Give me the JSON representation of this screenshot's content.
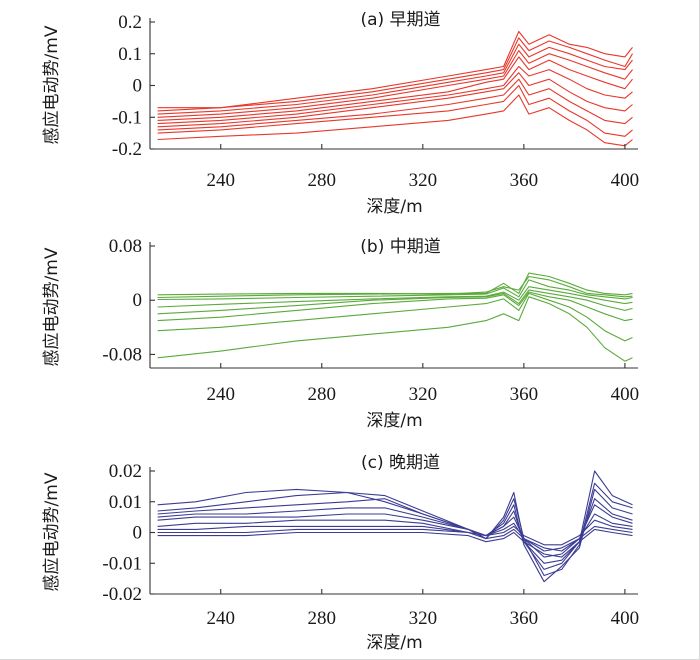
{
  "chart_data": [
    {
      "type": "line",
      "title": "(a) 早期道",
      "xlabel": "深度/m",
      "ylabel": "感应电动势/mV",
      "xlim": [
        212,
        404
      ],
      "ylim": [
        -0.2,
        0.2
      ],
      "xticks": [
        240,
        280,
        320,
        360,
        400
      ],
      "yticks": [
        0.2,
        0.1,
        0,
        -0.1,
        -0.2
      ],
      "ytick_labels": [
        "0.2",
        "0.1",
        "0",
        "-0.1",
        "-0.2"
      ],
      "color": "#e8372b",
      "series": [
        {
          "x": [
            215,
            240,
            270,
            300,
            330,
            345,
            352,
            358,
            362,
            370,
            378,
            385,
            392,
            400,
            403
          ],
          "values": [
            -0.07,
            -0.07,
            -0.04,
            -0.01,
            0.03,
            0.05,
            0.06,
            0.17,
            0.13,
            0.16,
            0.13,
            0.12,
            0.1,
            0.09,
            0.12
          ]
        },
        {
          "x": [
            215,
            240,
            270,
            300,
            330,
            345,
            352,
            358,
            362,
            370,
            378,
            385,
            392,
            400,
            403
          ],
          "values": [
            -0.08,
            -0.07,
            -0.05,
            -0.02,
            0.02,
            0.04,
            0.05,
            0.15,
            0.11,
            0.14,
            0.12,
            0.1,
            0.08,
            0.06,
            0.1
          ]
        },
        {
          "x": [
            215,
            240,
            270,
            300,
            330,
            345,
            352,
            358,
            362,
            370,
            378,
            385,
            392,
            400,
            403
          ],
          "values": [
            -0.09,
            -0.08,
            -0.06,
            -0.03,
            0.01,
            0.03,
            0.04,
            0.13,
            0.09,
            0.12,
            0.1,
            0.08,
            0.06,
            0.05,
            0.08
          ]
        },
        {
          "x": [
            215,
            240,
            270,
            300,
            330,
            345,
            352,
            358,
            362,
            370,
            378,
            385,
            392,
            400,
            403
          ],
          "values": [
            -0.1,
            -0.09,
            -0.07,
            -0.04,
            0.0,
            0.02,
            0.03,
            0.11,
            0.07,
            0.1,
            0.08,
            0.06,
            0.04,
            0.02,
            0.05
          ]
        },
        {
          "x": [
            215,
            240,
            270,
            300,
            330,
            345,
            352,
            358,
            362,
            370,
            378,
            385,
            392,
            400,
            403
          ],
          "values": [
            -0.11,
            -0.1,
            -0.08,
            -0.05,
            -0.02,
            0.01,
            0.02,
            0.09,
            0.05,
            0.08,
            0.05,
            0.03,
            0.01,
            -0.01,
            0.02
          ]
        },
        {
          "x": [
            215,
            240,
            270,
            300,
            330,
            345,
            352,
            358,
            362,
            370,
            378,
            385,
            392,
            400,
            403
          ],
          "values": [
            -0.12,
            -0.11,
            -0.09,
            -0.06,
            -0.03,
            -0.01,
            0.0,
            0.06,
            0.03,
            0.05,
            0.02,
            -0.01,
            -0.03,
            -0.04,
            -0.02
          ]
        },
        {
          "x": [
            215,
            240,
            270,
            300,
            330,
            345,
            352,
            358,
            362,
            370,
            378,
            385,
            392,
            400,
            403
          ],
          "values": [
            -0.13,
            -0.12,
            -0.1,
            -0.07,
            -0.04,
            -0.02,
            -0.01,
            0.04,
            0.0,
            0.02,
            -0.02,
            -0.05,
            -0.07,
            -0.08,
            -0.06
          ]
        },
        {
          "x": [
            215,
            240,
            270,
            300,
            330,
            345,
            352,
            358,
            362,
            370,
            378,
            385,
            392,
            400,
            403
          ],
          "values": [
            -0.14,
            -0.13,
            -0.11,
            -0.09,
            -0.06,
            -0.04,
            -0.03,
            0.02,
            -0.03,
            -0.01,
            -0.05,
            -0.08,
            -0.11,
            -0.12,
            -0.1
          ]
        },
        {
          "x": [
            215,
            240,
            270,
            300,
            330,
            345,
            352,
            358,
            362,
            370,
            378,
            385,
            392,
            400,
            403
          ],
          "values": [
            -0.15,
            -0.14,
            -0.12,
            -0.1,
            -0.08,
            -0.06,
            -0.05,
            0.0,
            -0.06,
            -0.04,
            -0.08,
            -0.11,
            -0.15,
            -0.16,
            -0.14
          ]
        },
        {
          "x": [
            215,
            240,
            270,
            300,
            330,
            345,
            352,
            358,
            362,
            370,
            378,
            385,
            392,
            400,
            403
          ],
          "values": [
            -0.17,
            -0.16,
            -0.15,
            -0.13,
            -0.11,
            -0.09,
            -0.08,
            -0.03,
            -0.09,
            -0.07,
            -0.11,
            -0.14,
            -0.18,
            -0.19,
            -0.17
          ]
        }
      ]
    },
    {
      "type": "line",
      "title": "(b) 中期道",
      "xlabel": "深度/m",
      "ylabel": "感应电动势/mV",
      "xlim": [
        212,
        404
      ],
      "ylim": [
        -0.1,
        0.08
      ],
      "xticks": [
        240,
        280,
        320,
        360,
        400
      ],
      "yticks": [
        0.08,
        0,
        -0.08
      ],
      "ytick_labels": [
        "0.08",
        "0",
        "-0.08"
      ],
      "color": "#5aaa3c",
      "series": [
        {
          "x": [
            215,
            240,
            270,
            300,
            330,
            345,
            352,
            358,
            362,
            370,
            378,
            385,
            392,
            400,
            403
          ],
          "values": [
            0.008,
            0.009,
            0.01,
            0.01,
            0.009,
            0.012,
            0.02,
            0.015,
            0.035,
            0.03,
            0.02,
            0.01,
            0.008,
            0.005,
            0.006
          ]
        },
        {
          "x": [
            215,
            240,
            270,
            300,
            330,
            345,
            352,
            358,
            362,
            370,
            378,
            385,
            392,
            400,
            403
          ],
          "values": [
            0.004,
            0.006,
            0.008,
            0.009,
            0.01,
            0.01,
            0.025,
            0.01,
            0.04,
            0.035,
            0.025,
            0.015,
            0.01,
            0.008,
            0.01
          ]
        },
        {
          "x": [
            215,
            240,
            270,
            300,
            330,
            345,
            352,
            358,
            362,
            370,
            378,
            385,
            392,
            400,
            403
          ],
          "values": [
            0.001,
            0.002,
            0.004,
            0.006,
            0.008,
            0.009,
            0.018,
            0.005,
            0.03,
            0.02,
            0.015,
            0.008,
            0.005,
            0.002,
            0.004
          ]
        },
        {
          "x": [
            215,
            240,
            270,
            300,
            330,
            345,
            352,
            358,
            362,
            370,
            378,
            385,
            392,
            400,
            403
          ],
          "values": [
            -0.01,
            -0.006,
            -0.002,
            0.002,
            0.005,
            0.006,
            0.012,
            0.0,
            0.02,
            0.015,
            0.01,
            0.005,
            0.0,
            -0.005,
            -0.003
          ]
        },
        {
          "x": [
            215,
            240,
            270,
            300,
            330,
            345,
            352,
            358,
            362,
            370,
            378,
            385,
            392,
            400,
            403
          ],
          "values": [
            -0.02,
            -0.015,
            -0.008,
            0.0,
            0.004,
            0.005,
            0.01,
            -0.005,
            0.015,
            0.01,
            0.005,
            0.0,
            -0.008,
            -0.015,
            -0.012
          ]
        },
        {
          "x": [
            215,
            240,
            270,
            300,
            330,
            345,
            352,
            358,
            362,
            370,
            378,
            385,
            392,
            400,
            403
          ],
          "values": [
            -0.03,
            -0.025,
            -0.015,
            -0.005,
            0.002,
            0.003,
            0.008,
            -0.008,
            0.012,
            0.005,
            0.0,
            -0.01,
            -0.02,
            -0.03,
            -0.028
          ]
        },
        {
          "x": [
            215,
            240,
            270,
            300,
            330,
            345,
            352,
            358,
            362,
            370,
            378,
            385,
            392,
            400,
            403
          ],
          "values": [
            -0.045,
            -0.04,
            -0.03,
            -0.02,
            -0.01,
            -0.005,
            0.002,
            -0.015,
            0.01,
            0.0,
            -0.01,
            -0.025,
            -0.045,
            -0.06,
            -0.055
          ]
        },
        {
          "x": [
            215,
            240,
            270,
            300,
            330,
            345,
            352,
            358,
            362,
            370,
            378,
            385,
            392,
            400,
            403
          ],
          "values": [
            -0.085,
            -0.075,
            -0.06,
            -0.05,
            -0.04,
            -0.03,
            -0.02,
            -0.03,
            0.005,
            -0.005,
            -0.02,
            -0.04,
            -0.07,
            -0.09,
            -0.085
          ]
        }
      ]
    },
    {
      "type": "line",
      "title": "(c) 晚期道",
      "xlabel": "深度/m",
      "ylabel": "感应电动势/mV",
      "xlim": [
        212,
        404
      ],
      "ylim": [
        -0.02,
        0.02
      ],
      "xticks": [
        240,
        280,
        320,
        360,
        400
      ],
      "yticks": [
        0.02,
        0.01,
        0,
        -0.01,
        -0.02
      ],
      "ytick_labels": [
        "0.02",
        "0.01",
        "0",
        "-0.01",
        "-0.02"
      ],
      "color": "#3c3c94",
      "series": [
        {
          "x": [
            215,
            230,
            250,
            270,
            290,
            305,
            320,
            338,
            345,
            352,
            356,
            360,
            368,
            375,
            382,
            388,
            395,
            403
          ],
          "values": [
            0.009,
            0.01,
            0.013,
            0.014,
            0.013,
            0.01,
            0.006,
            0.001,
            -0.002,
            0.005,
            0.013,
            -0.003,
            -0.012,
            -0.01,
            -0.003,
            0.02,
            0.012,
            0.009
          ]
        },
        {
          "x": [
            215,
            230,
            250,
            270,
            290,
            305,
            320,
            338,
            345,
            352,
            356,
            360,
            368,
            375,
            382,
            388,
            395,
            403
          ],
          "values": [
            0.007,
            0.008,
            0.01,
            0.012,
            0.013,
            0.012,
            0.007,
            0.001,
            -0.002,
            0.004,
            0.011,
            -0.002,
            -0.014,
            -0.012,
            -0.004,
            0.016,
            0.01,
            0.008
          ]
        },
        {
          "x": [
            215,
            230,
            250,
            270,
            290,
            305,
            320,
            338,
            345,
            352,
            356,
            360,
            368,
            375,
            382,
            388,
            395,
            403
          ],
          "values": [
            0.006,
            0.007,
            0.008,
            0.009,
            0.01,
            0.011,
            0.006,
            0.001,
            -0.001,
            0.003,
            0.009,
            -0.004,
            -0.016,
            -0.011,
            -0.005,
            0.014,
            0.008,
            0.006
          ]
        },
        {
          "x": [
            215,
            230,
            250,
            270,
            290,
            305,
            320,
            338,
            345,
            352,
            356,
            360,
            368,
            375,
            382,
            388,
            395,
            403
          ],
          "values": [
            0.005,
            0.006,
            0.006,
            0.007,
            0.008,
            0.008,
            0.005,
            0.001,
            -0.001,
            0.002,
            0.007,
            -0.003,
            -0.01,
            -0.009,
            -0.003,
            0.011,
            0.006,
            0.004
          ]
        },
        {
          "x": [
            215,
            230,
            250,
            270,
            290,
            305,
            320,
            338,
            345,
            352,
            356,
            360,
            368,
            375,
            382,
            388,
            395,
            403
          ],
          "values": [
            0.004,
            0.005,
            0.005,
            0.005,
            0.006,
            0.006,
            0.004,
            0.001,
            -0.001,
            0.002,
            0.005,
            -0.002,
            -0.008,
            -0.007,
            -0.002,
            0.009,
            0.005,
            0.003
          ]
        },
        {
          "x": [
            215,
            230,
            250,
            270,
            290,
            305,
            320,
            338,
            345,
            352,
            356,
            360,
            368,
            375,
            382,
            388,
            395,
            403
          ],
          "values": [
            0.002,
            0.003,
            0.003,
            0.004,
            0.004,
            0.004,
            0.003,
            0.0,
            -0.001,
            0.001,
            0.003,
            -0.002,
            -0.006,
            -0.005,
            -0.002,
            0.006,
            0.003,
            0.002
          ]
        },
        {
          "x": [
            215,
            230,
            250,
            270,
            290,
            305,
            320,
            338,
            345,
            352,
            356,
            360,
            368,
            375,
            382,
            388,
            395,
            403
          ],
          "values": [
            0.001,
            0.001,
            0.002,
            0.002,
            0.002,
            0.002,
            0.002,
            0.0,
            -0.001,
            0.0,
            0.002,
            -0.001,
            -0.004,
            -0.004,
            -0.001,
            0.004,
            0.002,
            0.001
          ]
        },
        {
          "x": [
            215,
            230,
            250,
            270,
            290,
            305,
            320,
            338,
            345,
            352,
            356,
            360,
            368,
            375,
            382,
            388,
            395,
            403
          ],
          "values": [
            0.0,
            0.0,
            0.0,
            0.001,
            0.001,
            0.001,
            0.001,
            0.0,
            -0.002,
            -0.001,
            0.001,
            -0.002,
            -0.005,
            -0.006,
            -0.002,
            0.002,
            0.001,
            0.0
          ]
        },
        {
          "x": [
            215,
            230,
            250,
            270,
            290,
            305,
            320,
            338,
            345,
            352,
            356,
            360,
            368,
            375,
            382,
            388,
            395,
            403
          ],
          "values": [
            -0.001,
            -0.001,
            -0.001,
            0.0,
            0.0,
            0.0,
            0.0,
            -0.001,
            -0.003,
            -0.002,
            0.0,
            -0.003,
            -0.007,
            -0.008,
            -0.003,
            0.001,
            0.0,
            -0.001
          ]
        }
      ]
    }
  ]
}
